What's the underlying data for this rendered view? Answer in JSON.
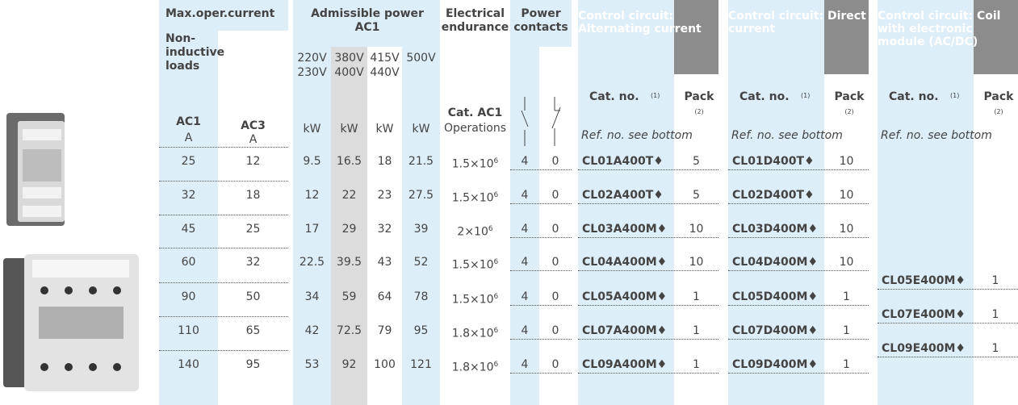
{
  "header": {
    "max_oper_current": "Max.oper.current",
    "non_inductive_loads": "Non-inductive loads",
    "ac1": "AC1",
    "ac1_unit": "A",
    "ac3": "AC3",
    "ac3_unit": "A",
    "admissible_power": "Admissible power AC1",
    "voltages": [
      [
        "220V",
        "230V"
      ],
      [
        "380V",
        "400V"
      ],
      [
        "415V",
        "440V"
      ],
      [
        "500V"
      ]
    ],
    "power_units": [
      "kW",
      "kW",
      "kW",
      "kW"
    ],
    "electrical_endurance": "Electrical endurance",
    "cat_ac1": "Cat. AC1",
    "operations": "Operations",
    "power_contacts": "Power contacts",
    "control_groups": [
      {
        "title": "Control circuit: Alternating current",
        "cat_no": "Cat. no.",
        "cat_note": "(1)",
        "pack": "Pack",
        "pack_note": "(2)",
        "ref": "Ref. no. see bottom"
      },
      {
        "title": "Control circuit: Direct current",
        "cat_no": "Cat. no.",
        "cat_note": "(1)",
        "pack": "Pack",
        "pack_note": "(2)",
        "ref": "Ref. no. see bottom"
      },
      {
        "title": "Control circuit: Coil with electronic module (AC/DC)",
        "cat_no": "Cat. no.",
        "cat_note": "(1)",
        "pack": "Pack",
        "pack_note": "(2)",
        "ref": "Ref. no. see bottom"
      }
    ]
  },
  "rows": [
    {
      "ac1": 25,
      "ac3": 12,
      "kw": [
        9.5,
        16.5,
        18,
        21.5
      ],
      "endurance": {
        "base": "1.5×10",
        "exp": "6"
      },
      "contacts": [
        4,
        0
      ],
      "ac": {
        "cat": "CL01A400T♦",
        "pack": 5
      },
      "dc": {
        "cat": "CL01D400T♦",
        "pack": 10
      }
    },
    {
      "ac1": 32,
      "ac3": 18,
      "kw": [
        12,
        22,
        23,
        27.5
      ],
      "endurance": {
        "base": "1.5×10",
        "exp": "6"
      },
      "contacts": [
        4,
        0
      ],
      "ac": {
        "cat": "CL02A400T♦",
        "pack": 5
      },
      "dc": {
        "cat": "CL02D400T♦",
        "pack": 10
      }
    },
    {
      "ac1": 45,
      "ac3": 25,
      "kw": [
        17,
        29,
        32,
        39
      ],
      "endurance": {
        "base": "2×10",
        "exp": "6"
      },
      "contacts": [
        4,
        0
      ],
      "ac": {
        "cat": "CL03A400M♦",
        "pack": 10
      },
      "dc": {
        "cat": "CL03D400M♦",
        "pack": 10
      }
    },
    {
      "ac1": 60,
      "ac3": 32,
      "kw": [
        22.5,
        39.5,
        43,
        52
      ],
      "endurance": {
        "base": "1.5×10",
        "exp": "6"
      },
      "contacts": [
        4,
        0
      ],
      "ac": {
        "cat": "CL04A400M♦",
        "pack": 10
      },
      "dc": {
        "cat": "CL04D400M♦",
        "pack": 10
      }
    },
    {
      "ac1": 90,
      "ac3": 50,
      "kw": [
        34,
        59,
        64,
        78
      ],
      "endurance": {
        "base": "1.5×10",
        "exp": "6"
      },
      "contacts": [
        4,
        0
      ],
      "ac": {
        "cat": "CL05A400M♦",
        "pack": 1
      },
      "dc": {
        "cat": "CL05D400M♦",
        "pack": 1
      }
    },
    {
      "ac1": 110,
      "ac3": 65,
      "kw": [
        42,
        72.5,
        79,
        95
      ],
      "endurance": {
        "base": "1.8×10",
        "exp": "6"
      },
      "contacts": [
        4,
        0
      ],
      "ac": {
        "cat": "CL07A400M♦",
        "pack": 1
      },
      "dc": {
        "cat": "CL07D400M♦",
        "pack": 1
      }
    },
    {
      "ac1": 140,
      "ac3": 95,
      "kw": [
        53,
        92,
        100,
        121
      ],
      "endurance": {
        "base": "1.8×10",
        "exp": "6"
      },
      "contacts": [
        4,
        0
      ],
      "ac": {
        "cat": "CL09A400M♦",
        "pack": 1
      },
      "dc": {
        "cat": "CL09D400M♦",
        "pack": 1
      }
    }
  ],
  "electronic_rows": [
    {
      "cat": "CL05E400M♦",
      "pack": 1
    },
    {
      "cat": "CL07E400M♦",
      "pack": 1
    },
    {
      "cat": "CL09E400M♦",
      "pack": 1
    }
  ]
}
